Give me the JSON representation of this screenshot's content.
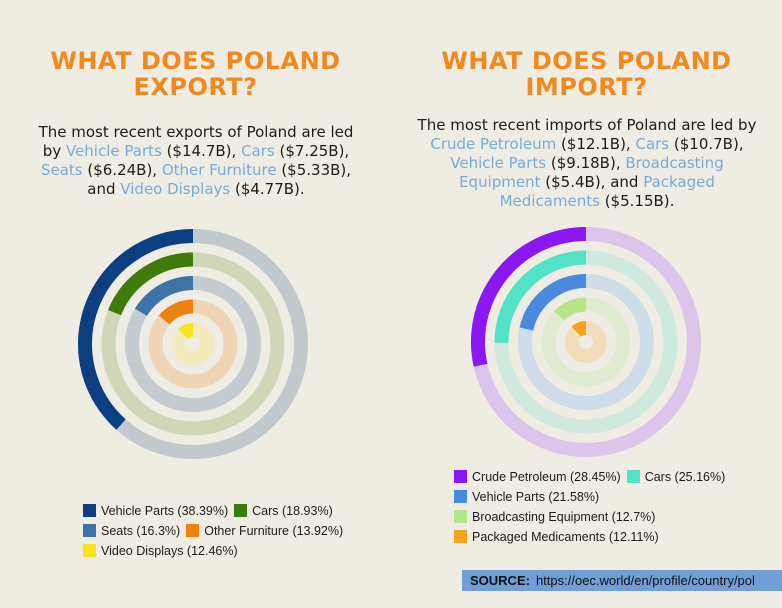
{
  "export_panel": {
    "title_line1": "WHAT DOES POLAND",
    "title_line2": "EXPORT?",
    "summary": [
      {
        "t": "The most recent exports of Poland are led by ",
        "hl": false
      },
      {
        "t": "Vehicle Parts",
        "hl": true
      },
      {
        "t": " ($14.7B), ",
        "hl": false
      },
      {
        "t": "Cars",
        "hl": true
      },
      {
        "t": " ($7.25B), ",
        "hl": false
      },
      {
        "t": "Seats",
        "hl": true
      },
      {
        "t": " ($6.24B), ",
        "hl": false
      },
      {
        "t": "Other Furniture",
        "hl": true
      },
      {
        "t": " ($5.33B), and ",
        "hl": false
      },
      {
        "t": "Video Displays",
        "hl": true
      },
      {
        "t": " ($4.77B).",
        "hl": false
      }
    ]
  },
  "import_panel": {
    "title_line1": "WHAT DOES POLAND",
    "title_line2": "IMPORT?",
    "summary": [
      {
        "t": "The most recent imports of Poland are led by ",
        "hl": false
      },
      {
        "t": "Crude Petroleum",
        "hl": true
      },
      {
        "t": " ($12.1B), ",
        "hl": false
      },
      {
        "t": "Cars",
        "hl": true
      },
      {
        "t": " ($10.7B), ",
        "hl": false
      },
      {
        "t": "Vehicle Parts",
        "hl": true
      },
      {
        "t": " ($9.18B), ",
        "hl": false
      },
      {
        "t": "Broadcasting Equipment",
        "hl": true
      },
      {
        "t": " ($5.4B), and ",
        "hl": false
      },
      {
        "t": "Packaged Medicaments",
        "hl": true
      },
      {
        "t": " ($5.15B).",
        "hl": false
      }
    ]
  },
  "source": {
    "label": "SOURCE:",
    "url": "https://oec.world/en/profile/country/pol"
  },
  "chart_data": [
    {
      "type": "radial-bar",
      "title": "",
      "categories": [
        "Vehicle Parts",
        "Cars",
        "Seats",
        "Other Furniture",
        "Video Displays"
      ],
      "values": [
        38.39,
        18.93,
        16.3,
        13.92,
        12.46
      ],
      "value_unit": "%",
      "legend_labels": [
        "Vehicle Parts (38.39%)",
        "Cars (18.93%)",
        "Seats (16.3%)",
        "Other Furniture (13.92%)",
        "Video Displays (12.46%)"
      ],
      "colors": [
        "#0b3f7f",
        "#3f7a0b",
        "#3d73a8",
        "#ee820f",
        "#f6e41c"
      ],
      "track_colors": [
        "#c1c9cc",
        "#d0d6b6",
        "#c4ccd0",
        "#efd4b5",
        "#f2ebbe"
      ],
      "legend_position": "bottom"
    },
    {
      "type": "radial-bar",
      "title": "",
      "categories": [
        "Crude Petroleum",
        "Cars",
        "Vehicle Parts",
        "Broadcasting Equipment",
        "Packaged Medicaments"
      ],
      "values": [
        28.45,
        25.16,
        21.58,
        12.7,
        12.11
      ],
      "value_unit": "%",
      "legend_labels": [
        "Crude Petroleum (28.45%)",
        "Cars (25.16%)",
        "Vehicle Parts (21.58%)",
        "Broadcasting Equipment (12.7%)",
        "Packaged Medicaments (12.11%)"
      ],
      "colors": [
        "#8b17f2",
        "#52e2c6",
        "#4a8ade",
        "#b6e58a",
        "#f4a321"
      ],
      "track_colors": [
        "#dcc5ea",
        "#cfe9df",
        "#cfdde9",
        "#dfeacf",
        "#f1ddbc"
      ],
      "legend_position": "bottom"
    }
  ]
}
